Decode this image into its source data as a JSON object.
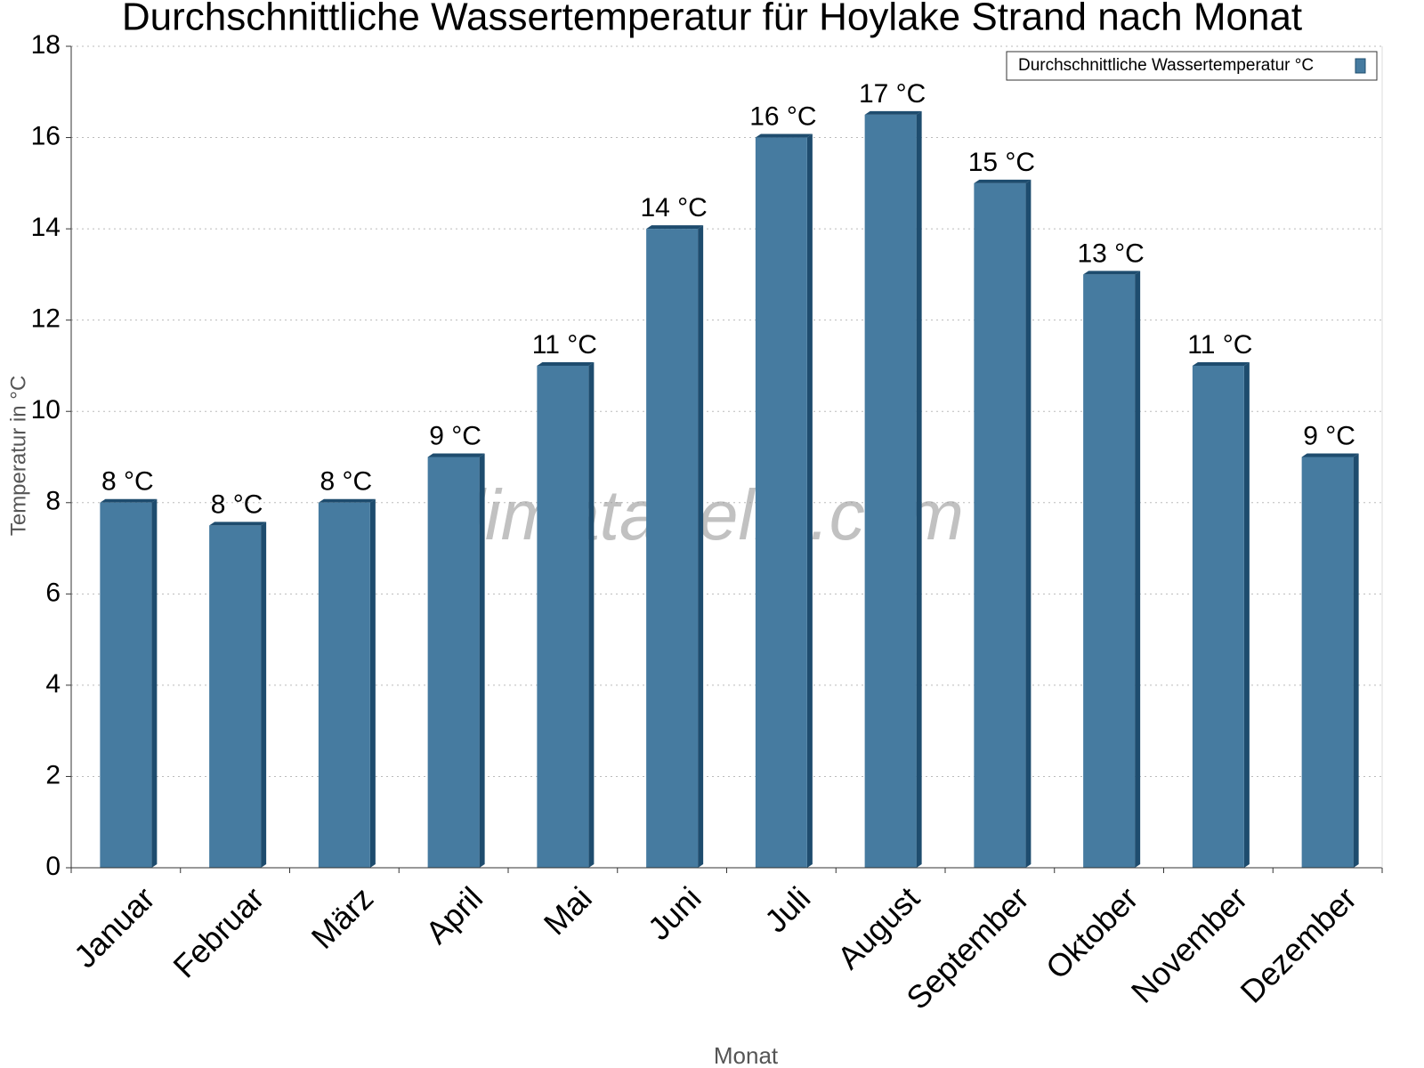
{
  "chart_data": {
    "type": "bar",
    "title": "Durchschnittliche Wassertemperatur für Hoylake Strand nach Monat",
    "x_label": "Monat",
    "y_label": "Temperatur in °C",
    "watermark": "klimatabelle.com",
    "categories": [
      "Januar",
      "Februar",
      "März",
      "April",
      "Mai",
      "Juni",
      "Juli",
      "August",
      "September",
      "Oktober",
      "November",
      "Dezember"
    ],
    "series": [
      {
        "name": "Durchschnittliche Wassertemperatur °C",
        "color": "#467ba0",
        "values": [
          8,
          7.5,
          8,
          9,
          11,
          14,
          16,
          16.5,
          15,
          13,
          11,
          9
        ],
        "value_labels": [
          "8 °C",
          "8 °C",
          "8 °C",
          "9 °C",
          "11 °C",
          "14 °C",
          "16 °C",
          "17 °C",
          "15 °C",
          "13 °C",
          "11 °C",
          "9 °C"
        ]
      }
    ],
    "ylim": [
      0,
      18
    ],
    "yticks": [
      0,
      2,
      4,
      6,
      8,
      10,
      12,
      14,
      16,
      18
    ],
    "grid": true,
    "legend": "upper right"
  }
}
